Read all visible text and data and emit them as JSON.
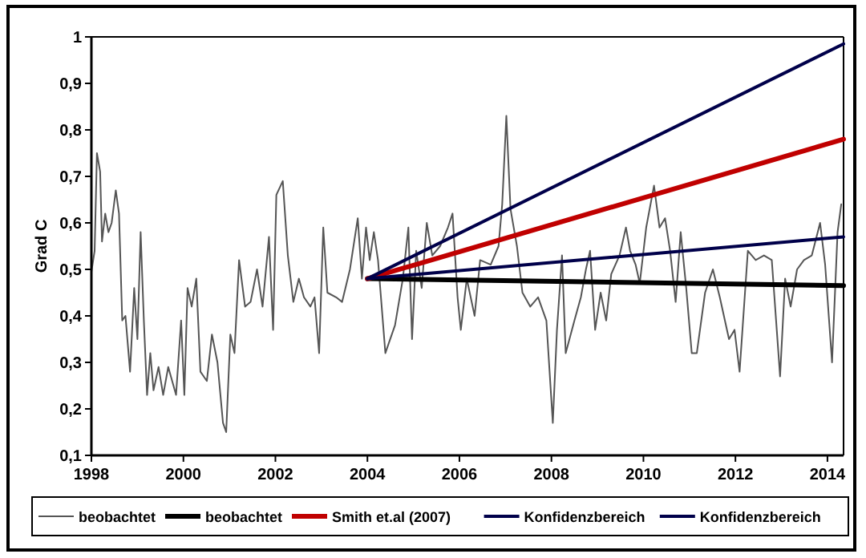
{
  "chart_data": {
    "type": "line",
    "ylabel": "Grad C",
    "xlim": [
      1998,
      2014.35
    ],
    "ylim": [
      0.1,
      1
    ],
    "xticks": [
      1998,
      2000,
      2002,
      2004,
      2006,
      2008,
      2010,
      2012,
      2014
    ],
    "yticks": [
      {
        "value": 0.1,
        "label": "0,1"
      },
      {
        "value": 0.2,
        "label": "0,2"
      },
      {
        "value": 0.3,
        "label": "0,3"
      },
      {
        "value": 0.4,
        "label": "0,4"
      },
      {
        "value": 0.5,
        "label": "0,5"
      },
      {
        "value": 0.6,
        "label": "0,6"
      },
      {
        "value": 0.7,
        "label": "0,7"
      },
      {
        "value": 0.8,
        "label": "0,8"
      },
      {
        "value": 0.9,
        "label": "0,9"
      },
      1
    ],
    "grid": false,
    "legend": "bottom",
    "marker": "none",
    "line_style": "solid",
    "series": [
      {
        "name": "beobachtet",
        "color": "#555555",
        "x": [
          1998.0,
          1998.07,
          1998.12,
          1998.19,
          1998.23,
          1998.3,
          1998.37,
          1998.44,
          1998.53,
          1998.6,
          1998.67,
          1998.74,
          1998.84,
          1998.93,
          1999.0,
          1999.07,
          1999.14,
          1999.21,
          1999.28,
          1999.35,
          1999.46,
          1999.56,
          1999.67,
          1999.84,
          1999.95,
          2000.02,
          2000.09,
          2000.18,
          2000.28,
          2000.37,
          2000.51,
          2000.62,
          2000.74,
          2000.86,
          2000.93,
          2001.02,
          2001.11,
          2001.21,
          2001.34,
          2001.46,
          2001.6,
          2001.72,
          2001.86,
          2001.95,
          2002.02,
          2002.16,
          2002.27,
          2002.39,
          2002.51,
          2002.62,
          2002.76,
          2002.85,
          2002.95,
          2003.04,
          2003.13,
          2003.32,
          2003.45,
          2003.62,
          2003.79,
          2003.88,
          2003.97,
          2004.05,
          2004.14,
          2004.23,
          2004.39,
          2004.6,
          2004.77,
          2004.89,
          2004.97,
          2005.06,
          2005.18,
          2005.29,
          2005.41,
          2005.58,
          2005.75,
          2005.85,
          2005.96,
          2006.03,
          2006.16,
          2006.33,
          2006.45,
          2006.68,
          2006.85,
          2006.93,
          2007.02,
          2007.11,
          2007.25,
          2007.37,
          2007.54,
          2007.71,
          2007.89,
          2008.03,
          2008.12,
          2008.23,
          2008.31,
          2008.5,
          2008.64,
          2008.75,
          2008.84,
          2008.95,
          2009.07,
          2009.19,
          2009.3,
          2009.48,
          2009.62,
          2009.71,
          2009.83,
          2009.92,
          2010.06,
          2010.23,
          2010.35,
          2010.47,
          2010.58,
          2010.7,
          2010.81,
          2010.93,
          2011.05,
          2011.16,
          2011.34,
          2011.51,
          2011.66,
          2011.86,
          2011.98,
          2012.09,
          2012.27,
          2012.44,
          2012.62,
          2012.79,
          2012.97,
          2013.08,
          2013.2,
          2013.34,
          2013.49,
          2013.66,
          2013.84,
          2013.95,
          2014.1,
          2014.22,
          2014.3
        ],
        "values": [
          0.495,
          0.54,
          0.75,
          0.71,
          0.56,
          0.62,
          0.58,
          0.6,
          0.67,
          0.62,
          0.39,
          0.4,
          0.28,
          0.46,
          0.35,
          0.58,
          0.39,
          0.23,
          0.32,
          0.24,
          0.29,
          0.23,
          0.29,
          0.23,
          0.39,
          0.23,
          0.46,
          0.42,
          0.48,
          0.28,
          0.26,
          0.36,
          0.3,
          0.17,
          0.15,
          0.36,
          0.32,
          0.52,
          0.42,
          0.43,
          0.5,
          0.42,
          0.57,
          0.37,
          0.66,
          0.69,
          0.53,
          0.43,
          0.48,
          0.44,
          0.42,
          0.44,
          0.32,
          0.59,
          0.45,
          0.44,
          0.43,
          0.5,
          0.61,
          0.48,
          0.59,
          0.52,
          0.58,
          0.52,
          0.32,
          0.38,
          0.48,
          0.59,
          0.35,
          0.54,
          0.46,
          0.6,
          0.53,
          0.55,
          0.59,
          0.62,
          0.44,
          0.37,
          0.48,
          0.4,
          0.52,
          0.51,
          0.55,
          0.64,
          0.83,
          0.63,
          0.55,
          0.45,
          0.42,
          0.44,
          0.39,
          0.17,
          0.37,
          0.53,
          0.32,
          0.39,
          0.44,
          0.5,
          0.54,
          0.37,
          0.45,
          0.39,
          0.49,
          0.53,
          0.59,
          0.54,
          0.51,
          0.47,
          0.59,
          0.68,
          0.59,
          0.61,
          0.54,
          0.43,
          0.58,
          0.46,
          0.32,
          0.32,
          0.45,
          0.5,
          0.44,
          0.35,
          0.37,
          0.28,
          0.54,
          0.52,
          0.53,
          0.52,
          0.27,
          0.48,
          0.42,
          0.5,
          0.52,
          0.53,
          0.6,
          0.51,
          0.3,
          0.58,
          0.64
        ]
      },
      {
        "name": "beobachtet",
        "color": "#000000",
        "x": [
          2004,
          2014.35
        ],
        "values": [
          0.48,
          0.465
        ]
      },
      {
        "name": "Smith et.al (2007)",
        "color": "#c00000",
        "x": [
          2004,
          2014.35
        ],
        "values": [
          0.48,
          0.78
        ]
      },
      {
        "name": "Konfidenzbereich",
        "color": "#00004a",
        "x": [
          2004,
          2014.35
        ],
        "values": [
          0.48,
          0.985
        ]
      },
      {
        "name": "Konfidenzbereich",
        "color": "#00004a",
        "x": [
          2004,
          2014.35
        ],
        "values": [
          0.48,
          0.57
        ]
      }
    ]
  }
}
